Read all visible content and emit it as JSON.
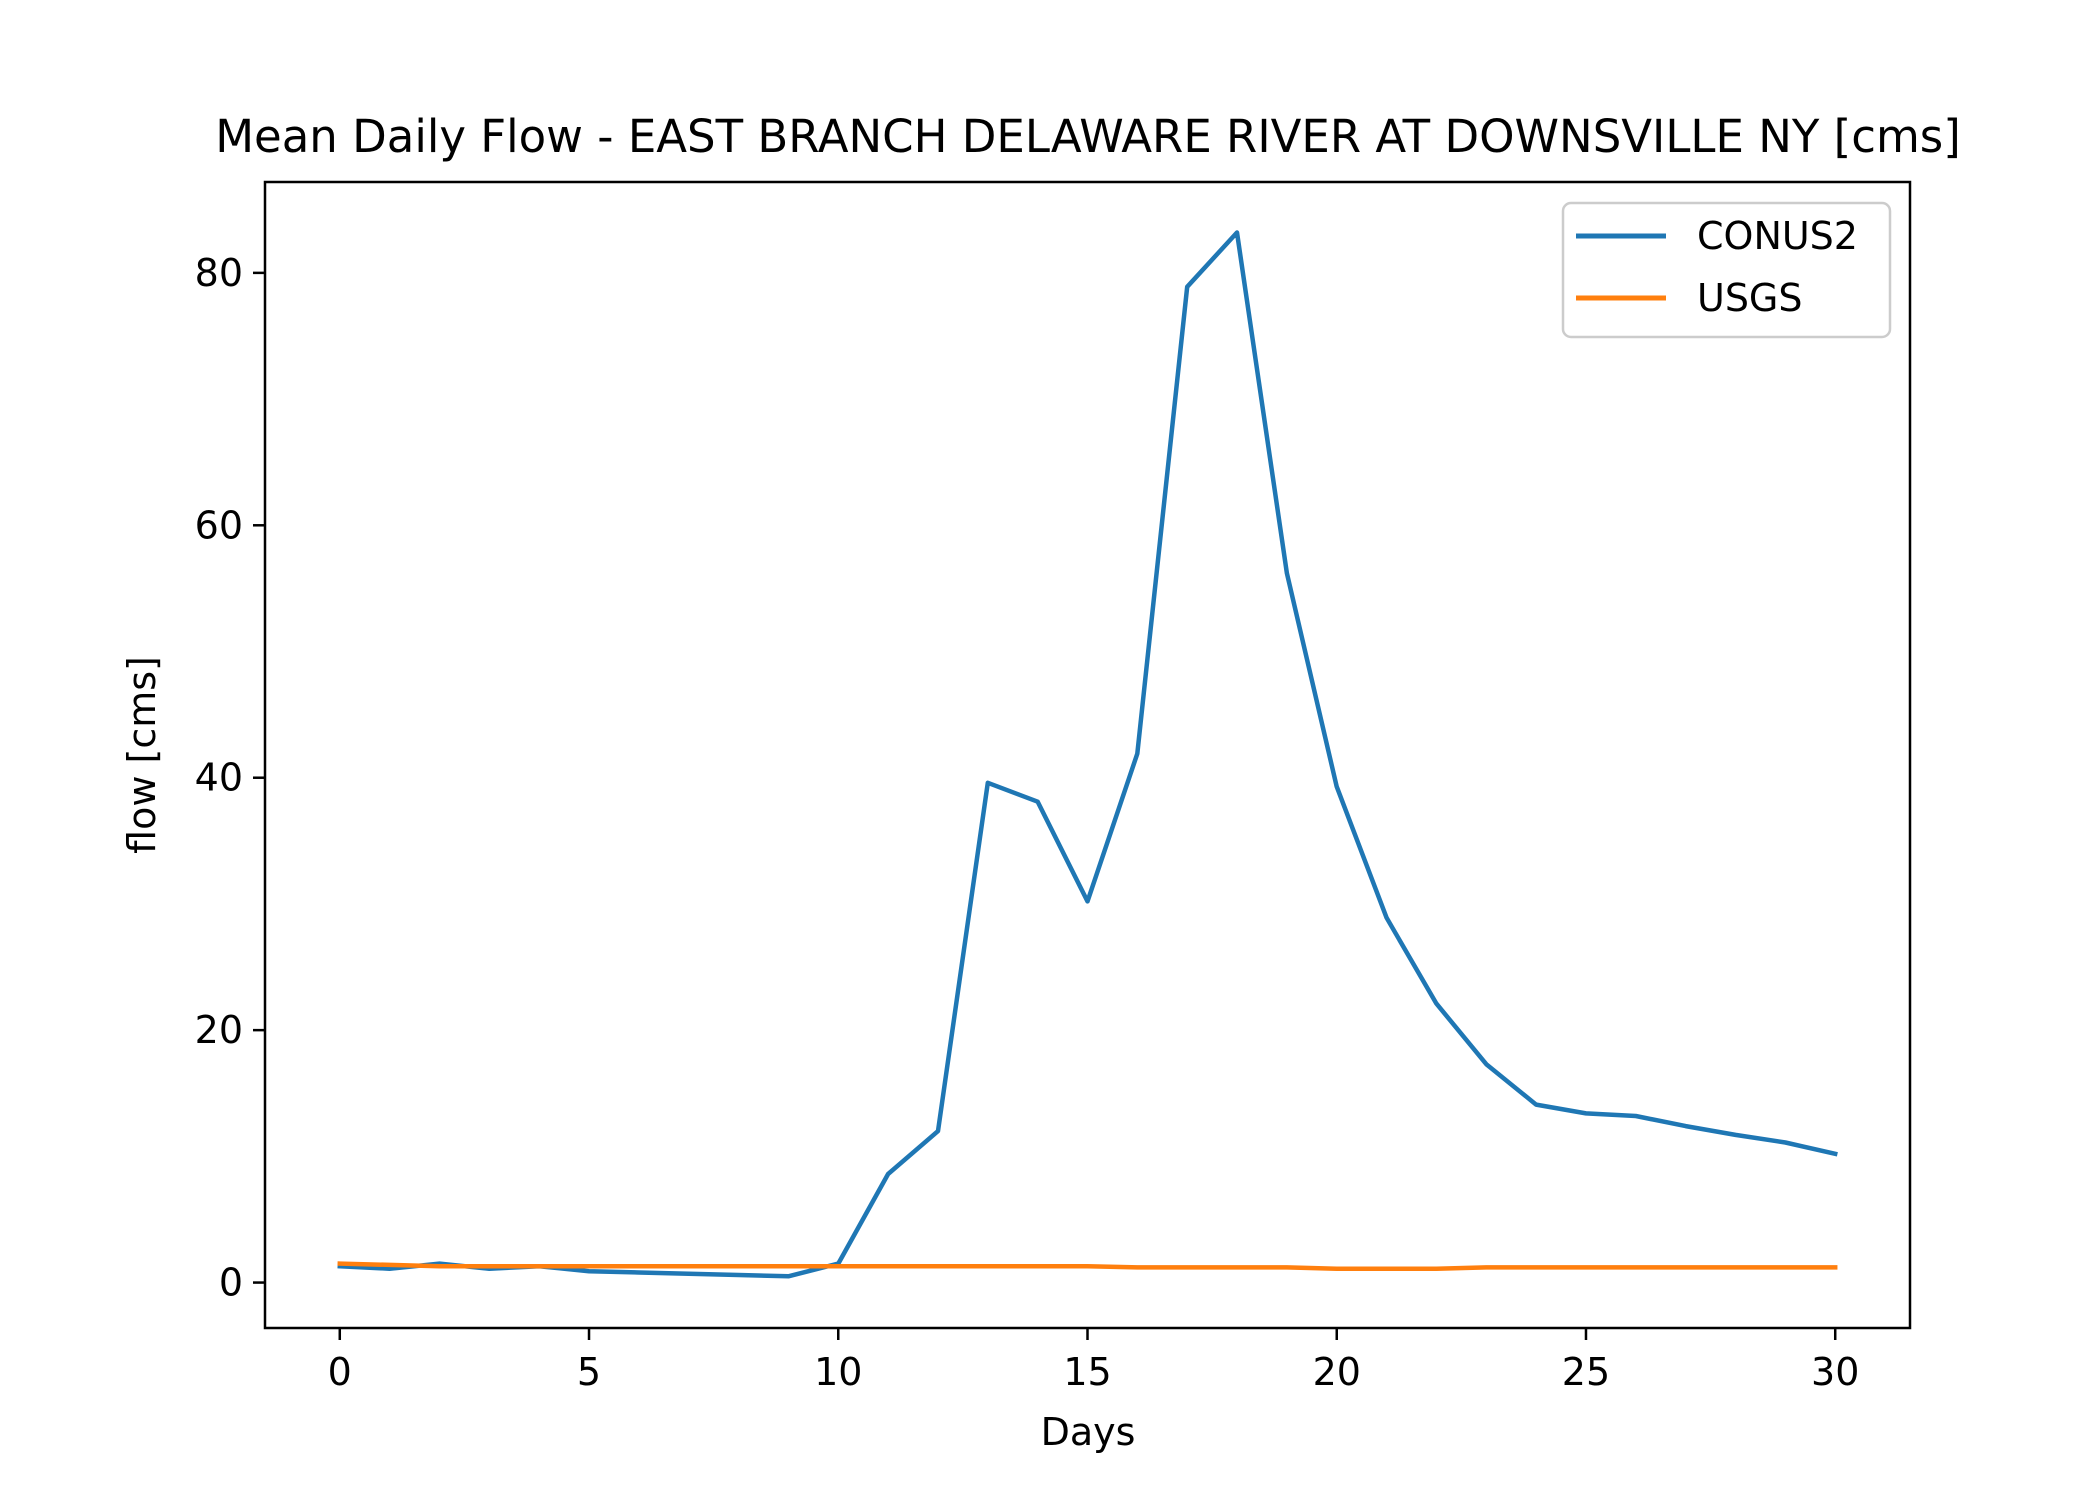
{
  "chart_data": {
    "type": "line",
    "title": "Mean Daily Flow - EAST BRANCH DELAWARE RIVER AT DOWNSVILLE NY [cms]",
    "xlabel": "Days",
    "ylabel": "flow [cms]",
    "xlim": [
      -1.5,
      31.5
    ],
    "ylim": [
      -3.6,
      87.2
    ],
    "xticks": [
      0,
      5,
      10,
      15,
      20,
      25,
      30
    ],
    "yticks": [
      0,
      20,
      40,
      60,
      80
    ],
    "grid": false,
    "legend_position": "top-right",
    "x": [
      0,
      1,
      2,
      3,
      4,
      5,
      6,
      7,
      8,
      9,
      10,
      11,
      12,
      13,
      14,
      15,
      16,
      17,
      18,
      19,
      20,
      21,
      22,
      23,
      24,
      25,
      26,
      27,
      28,
      29,
      30
    ],
    "series": [
      {
        "name": "CONUS2",
        "color": "#1f77b4",
        "values": [
          1.3,
          1.1,
          1.5,
          1.1,
          1.3,
          0.9,
          0.8,
          0.7,
          0.6,
          0.5,
          1.5,
          8.6,
          12.0,
          39.6,
          38.1,
          30.2,
          41.9,
          78.9,
          83.2,
          56.2,
          39.3,
          28.9,
          22.1,
          17.3,
          14.1,
          13.4,
          13.2,
          12.4,
          11.7,
          11.1,
          10.2
        ]
      },
      {
        "name": "USGS",
        "color": "#ff7f0e",
        "values": [
          1.5,
          1.4,
          1.3,
          1.3,
          1.3,
          1.3,
          1.3,
          1.3,
          1.3,
          1.3,
          1.3,
          1.3,
          1.3,
          1.3,
          1.3,
          1.3,
          1.2,
          1.2,
          1.2,
          1.2,
          1.1,
          1.1,
          1.1,
          1.2,
          1.2,
          1.2,
          1.2,
          1.2,
          1.2,
          1.2,
          1.2
        ]
      }
    ]
  }
}
